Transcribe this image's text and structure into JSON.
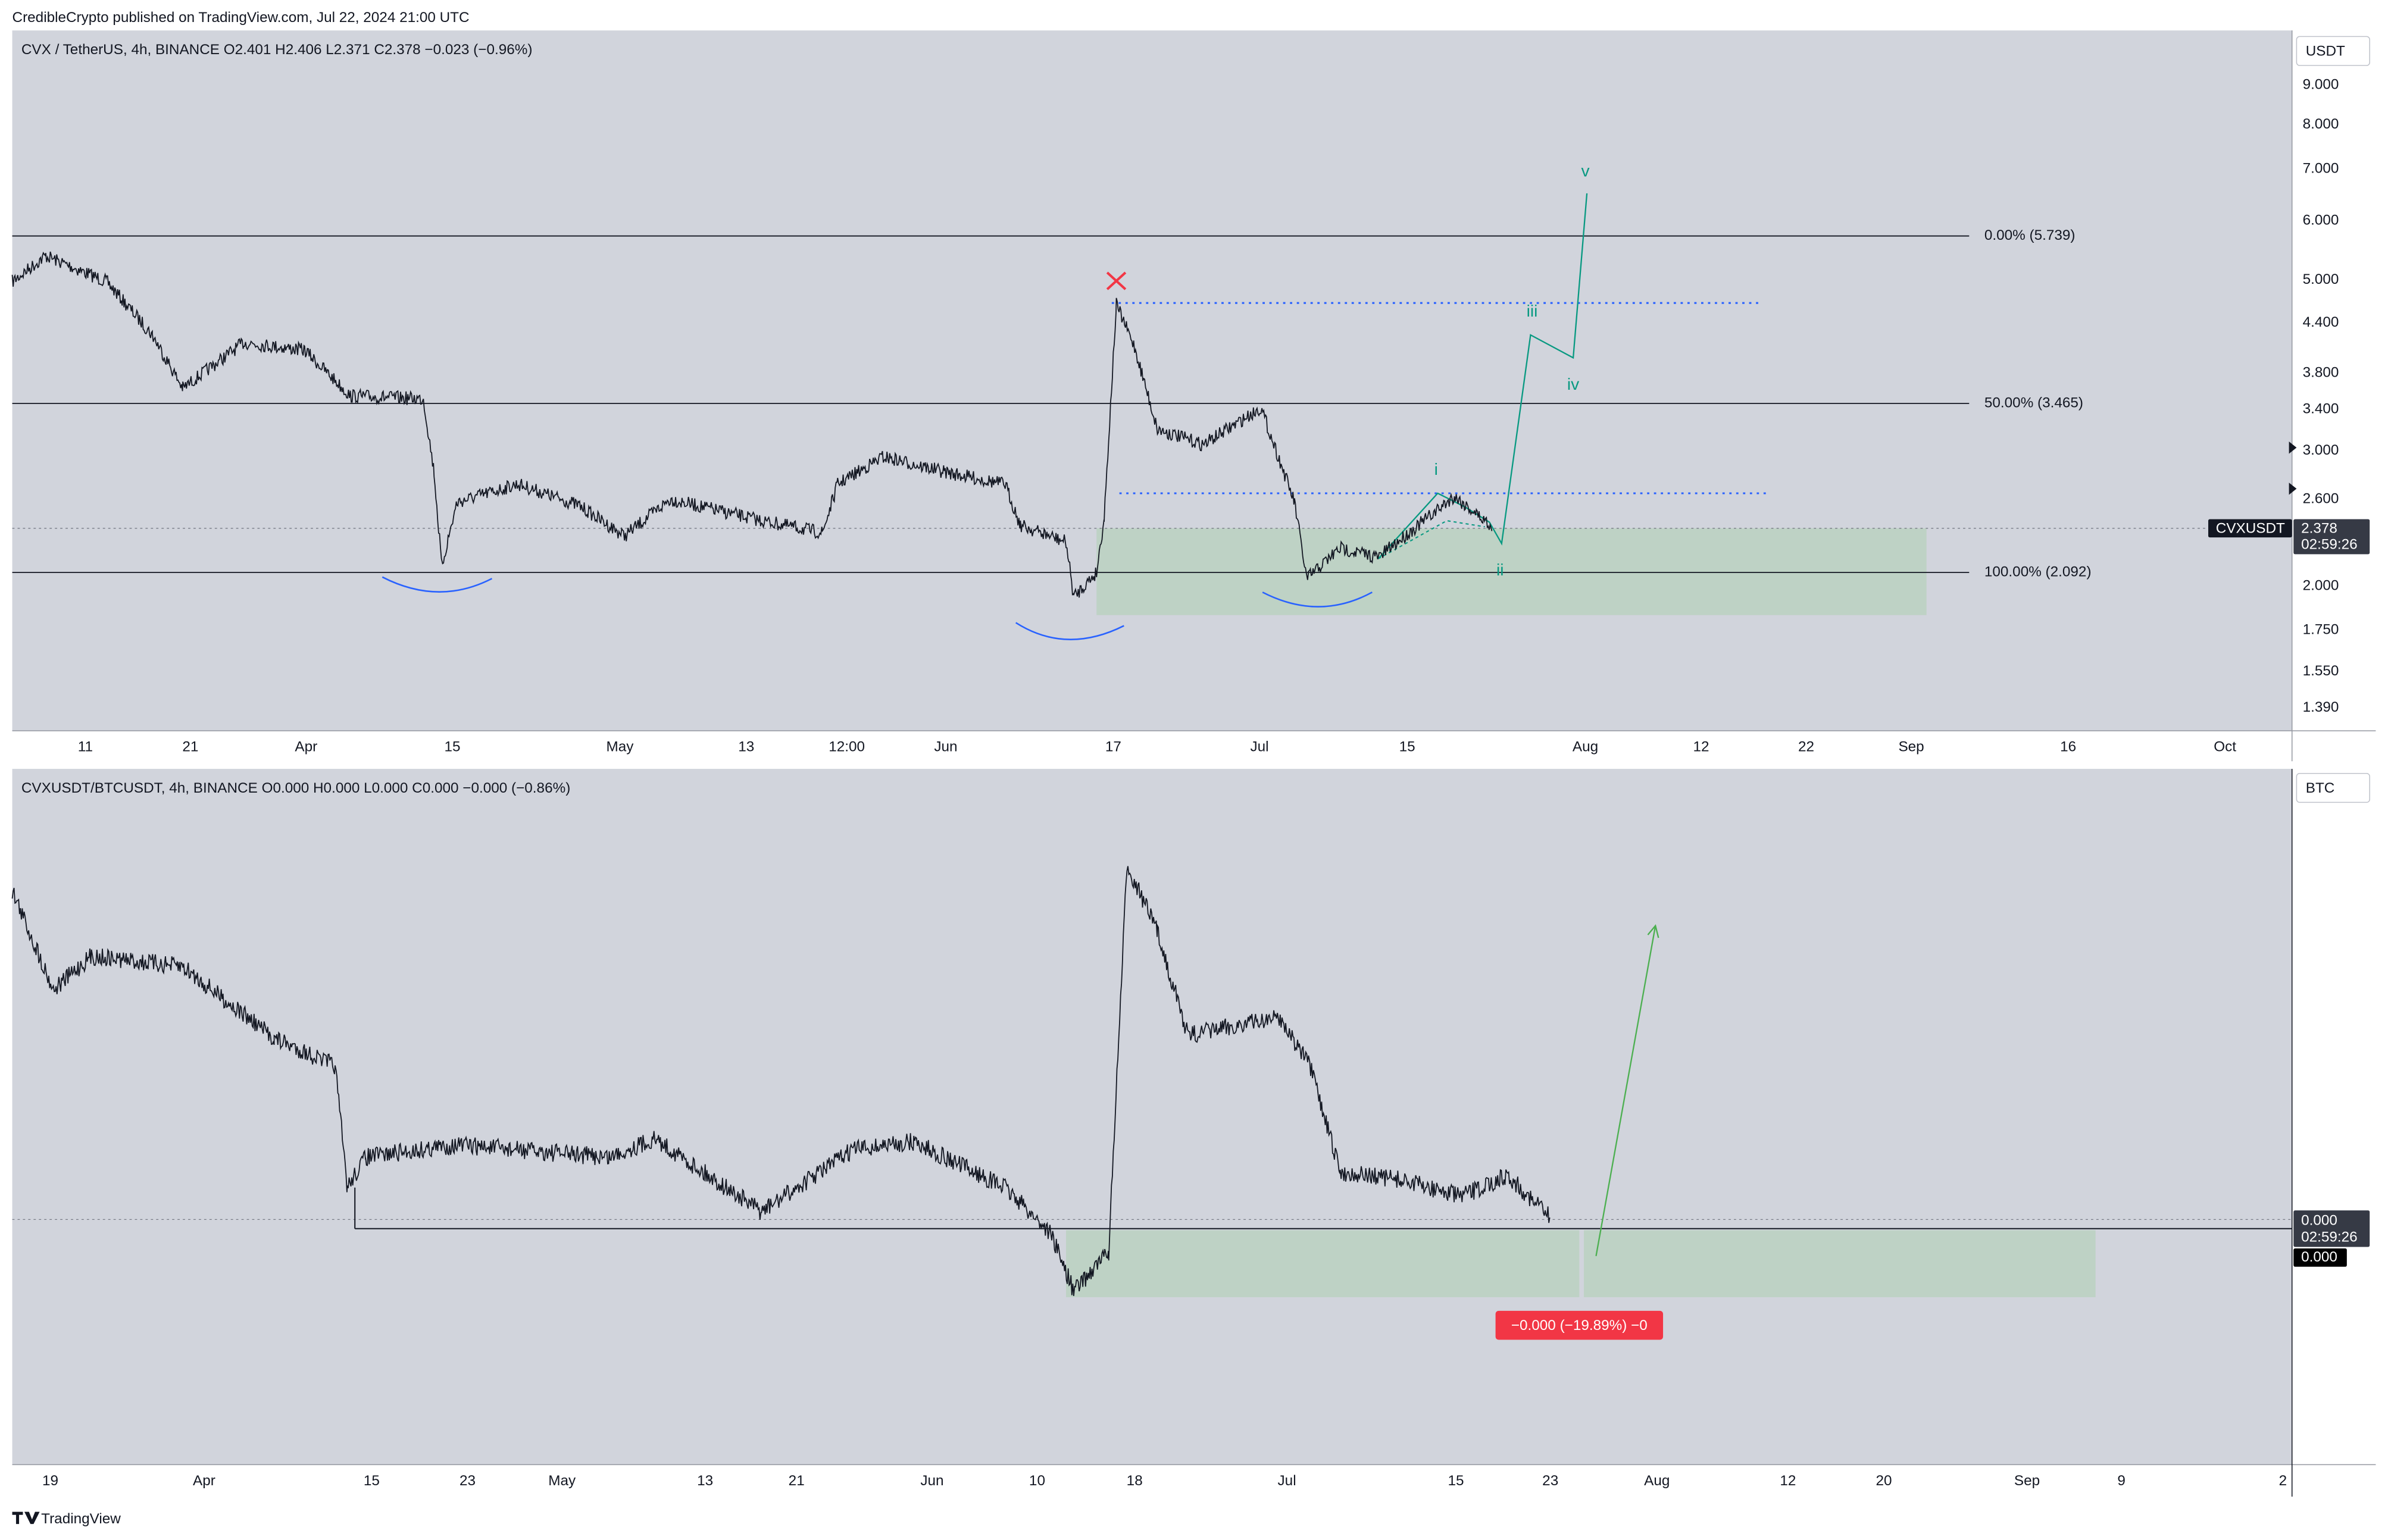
{
  "header": {
    "text": "CredibleCrypto published on TradingView.com, Jul 22, 2024 21:00 UTC"
  },
  "panels": [
    {
      "legend": "CVX / TetherUS, 4h, BINANCE  O2.401  H2.406  L2.371  C2.378  −0.023 (−0.96%)",
      "currency": "USDT",
      "price_labels": [
        "9.000",
        "8.000",
        "7.000",
        "6.000",
        "5.000",
        "4.400",
        "3.800",
        "3.400",
        "3.000",
        "2.600",
        "2.000",
        "1.750",
        "1.550",
        "1.390"
      ],
      "symbol_tag": "CVXUSDT",
      "last_price": "2.378",
      "countdown": "02:59:26",
      "fib_labels": [
        "0.00% (5.739)",
        "50.00% (3.465)",
        "100.00% (2.092)"
      ],
      "wave_labels": [
        "i",
        "ii",
        "iii",
        "iv",
        "v"
      ],
      "time_labels": [
        "11",
        "21",
        "Apr",
        "15",
        "May",
        "13",
        "12:00",
        "Jun",
        "17",
        "Jul",
        "15",
        "Aug",
        "12",
        "22",
        "Sep",
        "16",
        "Oct"
      ]
    },
    {
      "legend": "CVXUSDT/BTCUSDT, 4h, BINANCE  O0.000  H0.000  L0.000  C0.000  −0.000 (−0.86%)",
      "currency": "BTC",
      "last_price": "0.000",
      "countdown": "02:59:26",
      "level_tag": "0.000",
      "measure_label": "−0.000 (−19.89%) −0",
      "time_labels": [
        "19",
        "Apr",
        "15",
        "23",
        "May",
        "13",
        "21",
        "Jun",
        "10",
        "18",
        "Jul",
        "15",
        "23",
        "Aug",
        "12",
        "20",
        "Sep",
        "9",
        "2"
      ]
    }
  ],
  "footer": {
    "brand": "TradingView"
  }
}
